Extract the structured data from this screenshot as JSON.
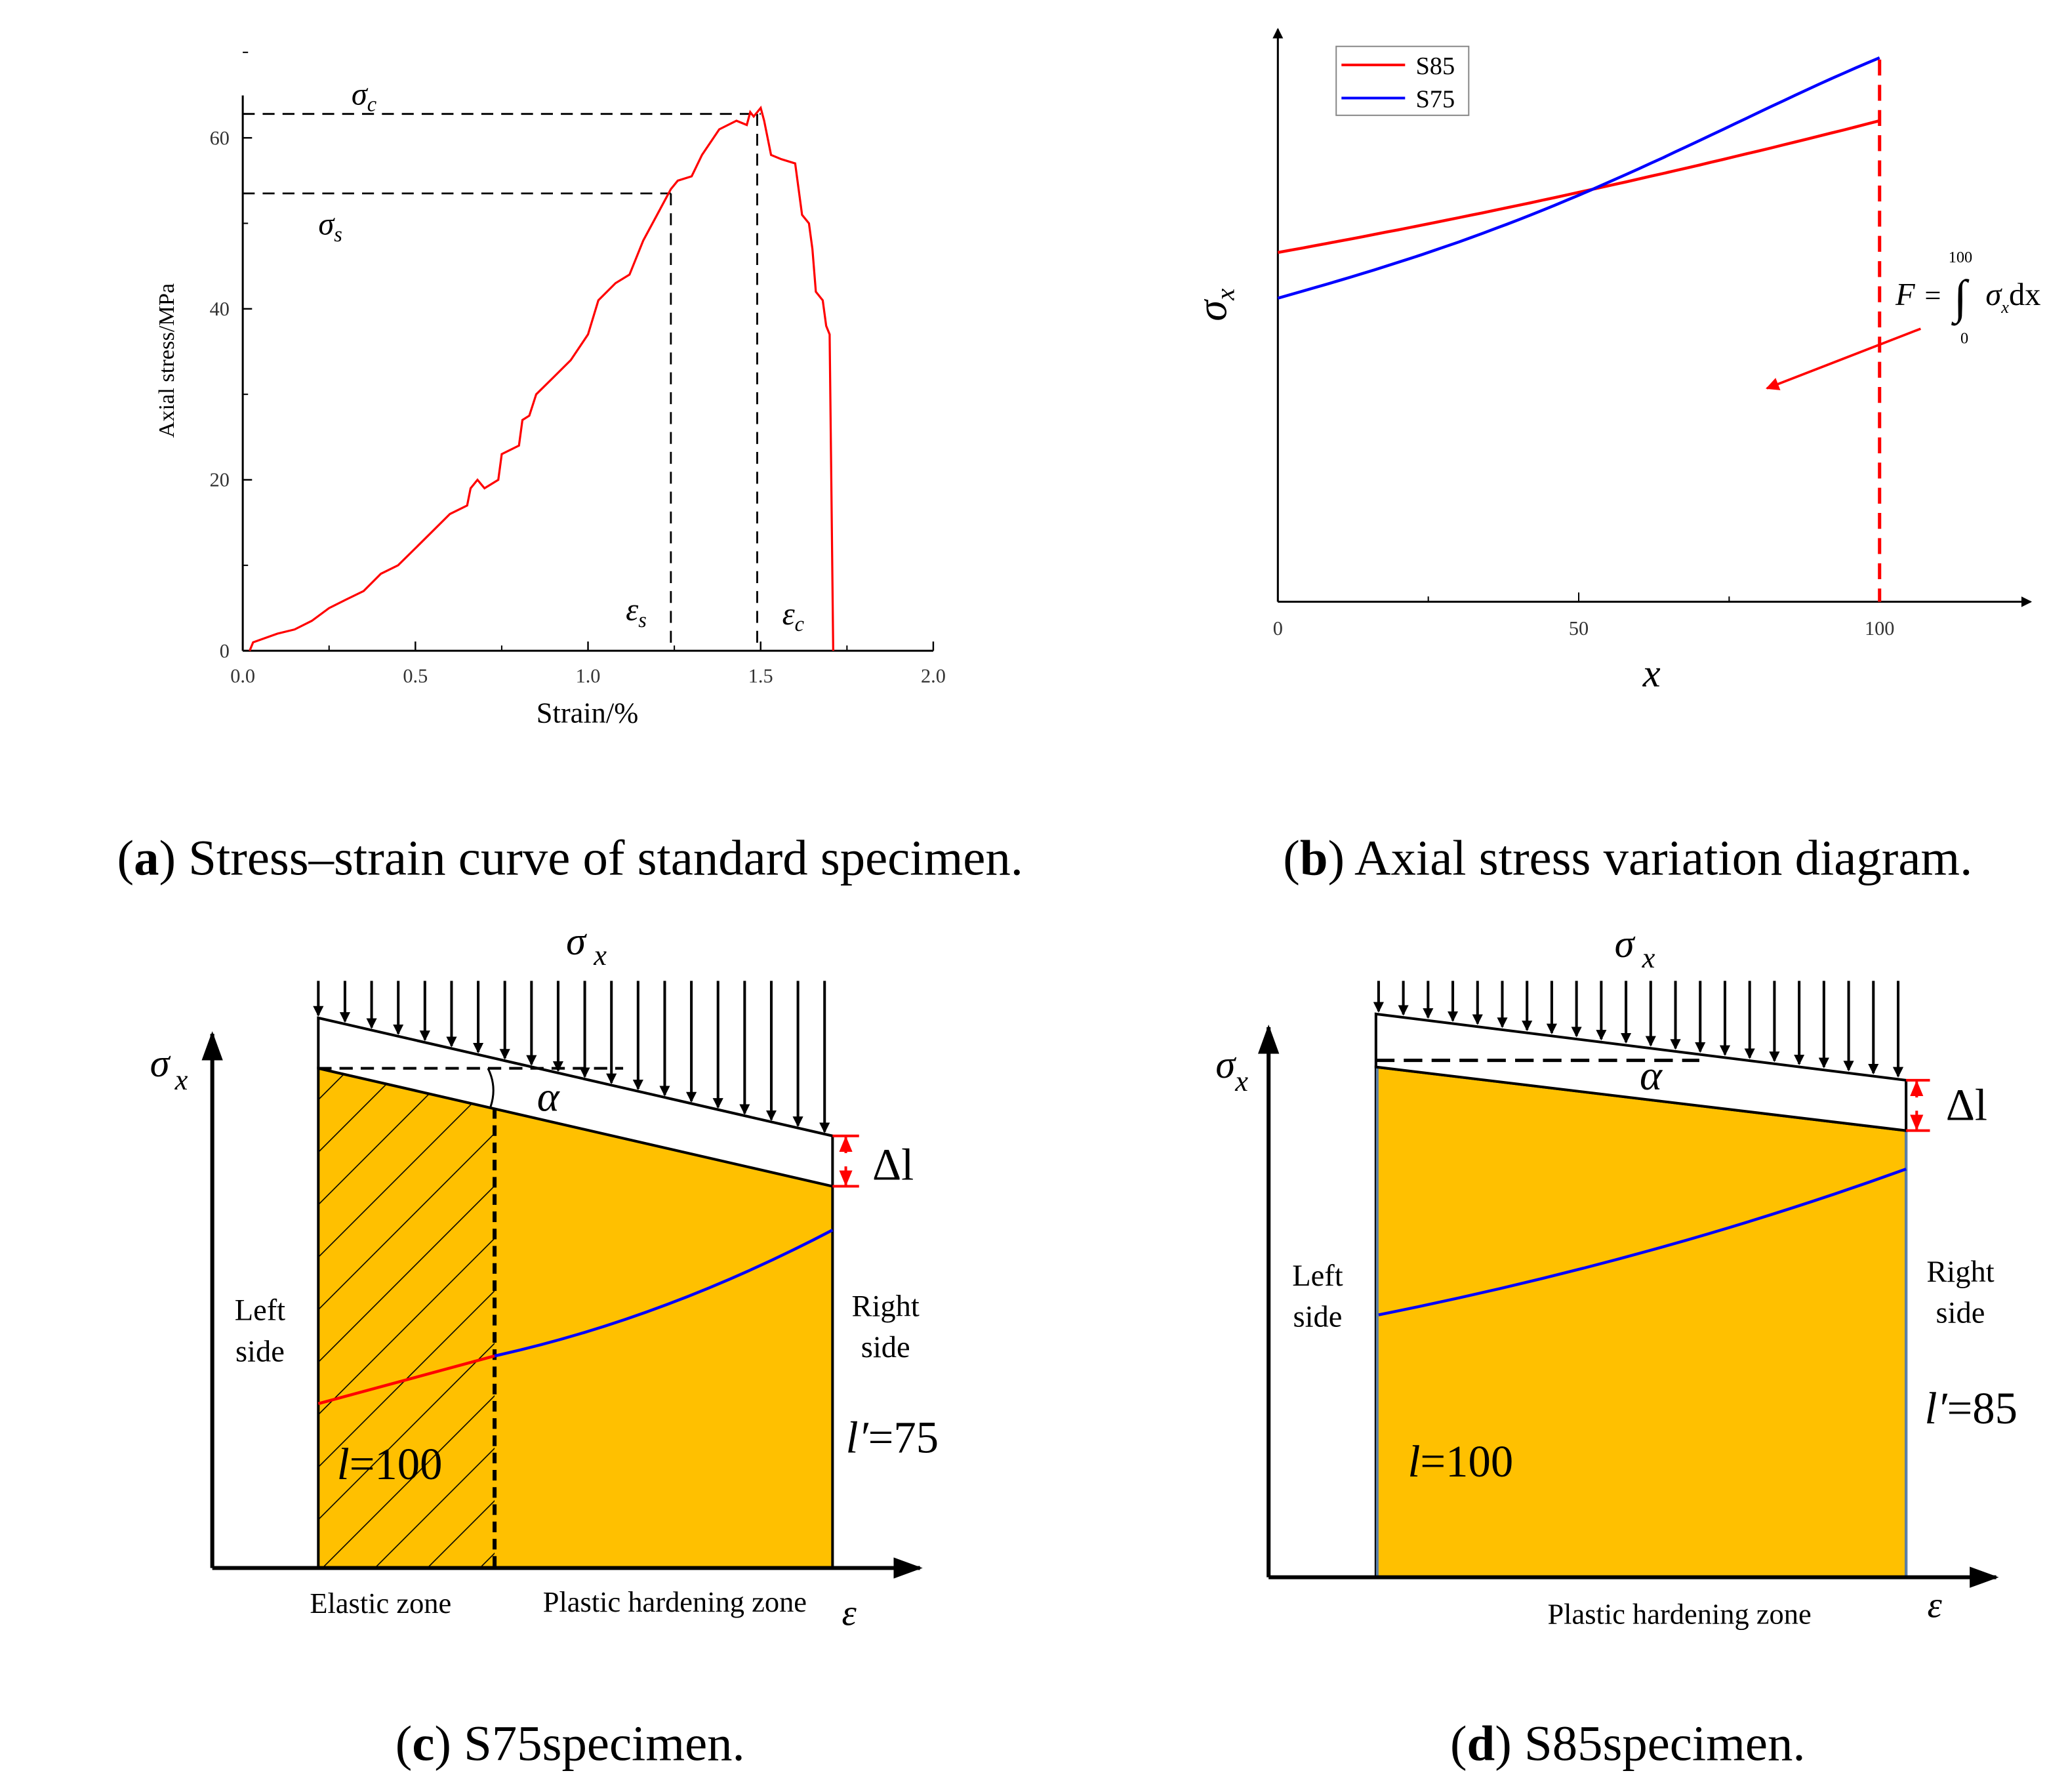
{
  "chart_data": [
    {
      "type": "line",
      "panel": "a",
      "caption_letter": "a",
      "caption_text": " Stress–strain curve of standard specimen.",
      "xlabel": "Strain/%",
      "ylabel": "Axial stress/MPa",
      "xlim": [
        0,
        2
      ],
      "ylim": [
        0,
        65
      ],
      "xticks": [
        "0.0",
        "0.5",
        "1.0",
        "1.5",
        "2.0"
      ],
      "xtick_values": [
        0,
        0.5,
        1.0,
        1.5,
        2.0
      ],
      "yticks": [
        "0",
        "20",
        "40",
        "60"
      ],
      "ytick_values": [
        0,
        20,
        40,
        60
      ],
      "color": "#ff0000",
      "series": [
        {
          "name": "stress-strain",
          "x": [
            0.02,
            0.03,
            0.1,
            0.15,
            0.2,
            0.25,
            0.3,
            0.35,
            0.4,
            0.45,
            0.5,
            0.55,
            0.6,
            0.65,
            0.66,
            0.68,
            0.7,
            0.74,
            0.75,
            0.8,
            0.81,
            0.83,
            0.85,
            0.9,
            0.95,
            1.0,
            1.03,
            1.08,
            1.12,
            1.16,
            1.2,
            1.24,
            1.26,
            1.3,
            1.33,
            1.38,
            1.43,
            1.46,
            1.47,
            1.48,
            1.5,
            1.51,
            1.53,
            1.56,
            1.6,
            1.62,
            1.64,
            1.65,
            1.66,
            1.68,
            1.69,
            1.7,
            1.705,
            1.71
          ],
          "y": [
            0,
            1,
            2,
            2.5,
            3.5,
            5,
            6,
            7,
            9,
            10,
            12,
            14,
            16,
            17,
            19,
            20,
            19,
            20,
            23,
            24,
            27,
            27.5,
            30,
            32,
            34,
            37,
            41,
            43,
            44,
            48,
            51,
            54,
            55,
            55.5,
            58,
            61,
            62,
            61.5,
            63,
            62.5,
            63.5,
            62,
            58,
            57.5,
            57,
            51,
            50,
            47,
            42,
            41,
            38,
            37,
            18,
            0
          ]
        }
      ],
      "annotations": {
        "sigma_c": {
          "symbol": "σ",
          "sub": "c",
          "value": 62.8
        },
        "sigma_s": {
          "symbol": "σ",
          "sub": "s",
          "value": 53.5
        },
        "epsilon_s": {
          "symbol": "ε",
          "sub": "s",
          "value": 1.24
        },
        "epsilon_c": {
          "symbol": "ε",
          "sub": "c",
          "value": 1.49
        }
      }
    },
    {
      "type": "line",
      "panel": "b",
      "caption_letter": "b",
      "caption_text": " Axial stress variation diagram.",
      "xlabel": "x",
      "ylabel_symbol": "σ",
      "ylabel_sub": "x",
      "xlim": [
        0,
        125
      ],
      "ylim": [
        0,
        100
      ],
      "xticks": [
        "0",
        "50",
        "100"
      ],
      "xtick_values": [
        0,
        50,
        100
      ],
      "legend_position": "top-left",
      "series": [
        {
          "name": "S85",
          "color": "#ff0000",
          "x": [
            0,
            25,
            50,
            75,
            100
          ],
          "y": [
            61,
            66,
            71.5,
            77.5,
            84
          ]
        },
        {
          "name": "S75",
          "color": "#0000ff",
          "x": [
            0,
            25,
            50,
            75,
            100
          ],
          "y": [
            53,
            61,
            71,
            83,
            95
          ]
        }
      ],
      "cutoff_x": 100,
      "formula": {
        "lhs": "F",
        "eq": "=",
        "integral": "∫",
        "upper": "100",
        "lower": "0",
        "sigma": "σ",
        "sub": "x",
        "dx": "dx"
      }
    }
  ],
  "diagram_c": {
    "caption_letter": "c",
    "caption_text": " S75specimen.",
    "top_label": "σ",
    "top_sub": "x",
    "yaxis_label": "σ",
    "yaxis_sub": "x",
    "alpha": "α",
    "delta_l": "Δl",
    "left_side": [
      "Left",
      "side"
    ],
    "right_side": [
      "Right",
      "side"
    ],
    "l_label": "l",
    "l_value": "=100",
    "lp_label": "l′",
    "lp_value": "=75",
    "zone_elastic": "Elastic zone",
    "zone_plastic": "Plastic hardening zone",
    "xaxis_label": "ε",
    "fill_color": "#ffc000",
    "arrow_count": 20
  },
  "diagram_d": {
    "caption_letter": "d",
    "caption_text": " S85specimen.",
    "top_label": "σ",
    "top_sub": "x",
    "yaxis_label": "σ",
    "yaxis_sub": "x",
    "alpha": "α",
    "delta_l": "Δl",
    "left_side": [
      "Left",
      "side"
    ],
    "right_side": [
      "Right",
      "side"
    ],
    "l_label": "l",
    "l_value": "=100",
    "lp_label": "l′",
    "lp_value": "=85",
    "zone_plastic": "Plastic hardening zone",
    "xaxis_label": "ε",
    "fill_color": "#ffc000",
    "arrow_count": 22
  }
}
